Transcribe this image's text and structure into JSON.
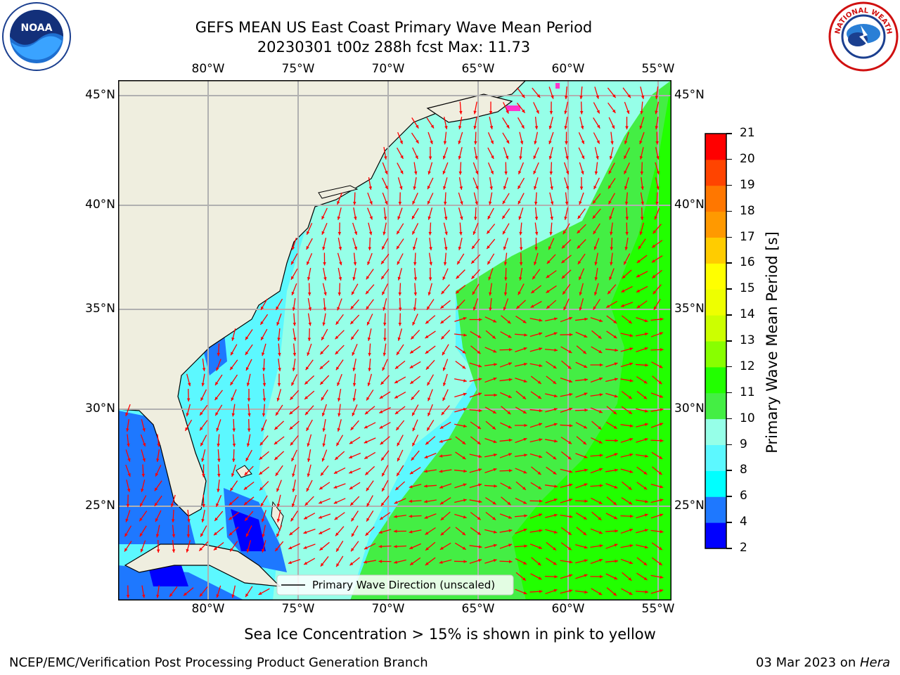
{
  "header": {
    "title_line1": "GEFS MEAN US East Coast Primary Wave Mean Period",
    "title_line2": "20230301 t00z 288h fcst   Max: 11.73"
  },
  "logos": {
    "left": {
      "icon": "noaa-logo",
      "text": "NOAA"
    },
    "right": {
      "icon": "nws-logo",
      "text": "NATIONAL WEATHER SERVICE"
    }
  },
  "map": {
    "lon_labels": [
      "80°W",
      "75°W",
      "70°W",
      "65°W",
      "60°W",
      "55°W"
    ],
    "lat_labels": [
      "45°N",
      "40°N",
      "35°N",
      "30°N",
      "25°N"
    ],
    "lon_range": [
      -85,
      -54.2
    ],
    "lat_range": [
      20.5,
      46
    ],
    "legend_text": "Primary Wave Direction (unscaled)",
    "arrow_color": "#ff0000",
    "land_color": "#efeedf",
    "grid_color": "#b0b0b0"
  },
  "colorbar": {
    "title": "Primary Wave Mean Period [s]",
    "ticks": [
      "2",
      "4",
      "6",
      "8",
      "9",
      "10",
      "11",
      "12",
      "13",
      "14",
      "15",
      "16",
      "17",
      "18",
      "19",
      "20",
      "21"
    ],
    "colors": [
      "#0000ff",
      "#1e78ff",
      "#00ffff",
      "#5cf8ff",
      "#96ffe8",
      "#44ee44",
      "#22ff00",
      "#88ff00",
      "#ccff00",
      "#eeff00",
      "#ffff00",
      "#ffcc00",
      "#ff9900",
      "#ff7700",
      "#ff4400",
      "#ff0000"
    ]
  },
  "note": "Sea Ice Concentration > 15% is shown in pink to yellow",
  "footer": {
    "left": "NCEP/EMC/Verification Post Processing Product Generation Branch",
    "right_prefix": "03 Mar 2023 on ",
    "right_host": "Hera"
  }
}
